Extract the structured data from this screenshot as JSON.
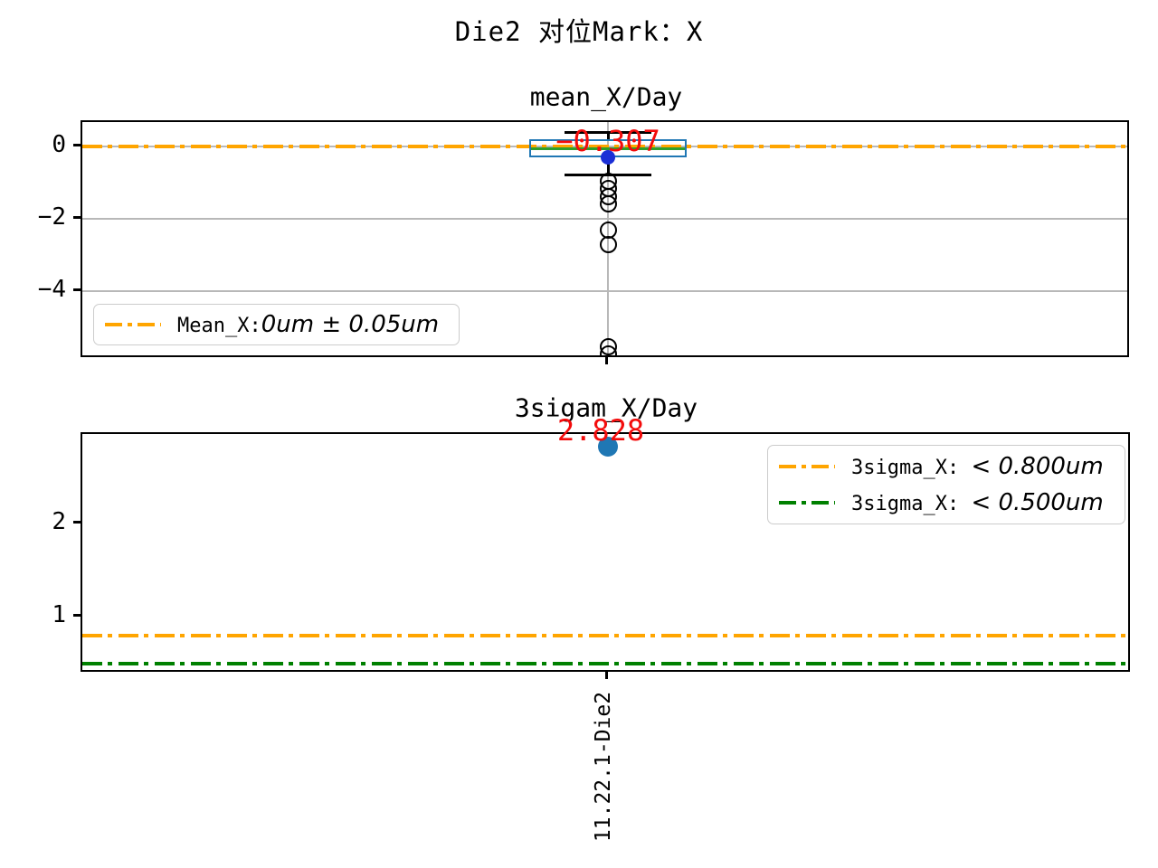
{
  "figure": {
    "title": "Die2 对位Mark：X"
  },
  "colors": {
    "orange": "#ffa500",
    "green": "#008000",
    "median_green": "#2ca02c",
    "box_blue": "#1f77b4",
    "mean_dot_blue": "#1b2fd6",
    "point_blue": "#1f77b4",
    "annotation_red": "#f30b0b",
    "grid_gray": "#b8b8b8",
    "spine_black": "#000000"
  },
  "chart_data": [
    {
      "type": "boxplot",
      "title": "mean_X/Day",
      "categories": [
        "11.22.1-Die2"
      ],
      "yticks": [
        0,
        -2,
        -4
      ],
      "ylim": [
        -5.88,
        0.68
      ],
      "grid": true,
      "series": [
        {
          "name": "11.22.1-Die2",
          "q1": -0.3,
          "median": -0.05,
          "q3": 0.2,
          "whisker_low": -0.78,
          "whisker_high": 0.38,
          "mean": -0.307,
          "outliers": [
            -0.95,
            -1.15,
            -1.38,
            -1.58,
            -2.3,
            -2.7,
            -5.53,
            -5.73
          ]
        }
      ],
      "annotation": {
        "text": "−0.307",
        "value": -0.307
      },
      "ref_lines": [
        {
          "value": 0,
          "color": "#ffa500",
          "style": "dashdot",
          "meaning": "Mean_X target 0um ± 0.05um"
        }
      ],
      "legend": {
        "position": "lower left",
        "entries": [
          {
            "color": "#ffa500",
            "style": "dashdot",
            "label_plain": "Mean_X:",
            "label_math": "0um ± 0.05um"
          }
        ]
      }
    },
    {
      "type": "scatter",
      "title": "3sigam_X/Day",
      "categories": [
        "11.22.1-Die2"
      ],
      "yticks": [
        2,
        1
      ],
      "ylim": [
        0.39,
        2.96
      ],
      "grid": false,
      "points": [
        {
          "category": "11.22.1-Die2",
          "value": 2.828
        }
      ],
      "annotation": {
        "text": "2.828",
        "value": 2.828
      },
      "ref_lines": [
        {
          "value": 0.8,
          "color": "#ffa500",
          "style": "dashdot",
          "meaning": "3sigma_X spec < 0.800um"
        },
        {
          "value": 0.5,
          "color": "#008000",
          "style": "dashdot",
          "meaning": "3sigma_X spec < 0.500um"
        }
      ],
      "legend": {
        "position": "upper right",
        "entries": [
          {
            "color": "#ffa500",
            "style": "dashdot",
            "label_plain": "3sigma_X: ",
            "label_math": "< 0.800um"
          },
          {
            "color": "#008000",
            "style": "dashdot",
            "label_plain": "3sigma_X: ",
            "label_math": "< 0.500um"
          }
        ]
      }
    }
  ]
}
